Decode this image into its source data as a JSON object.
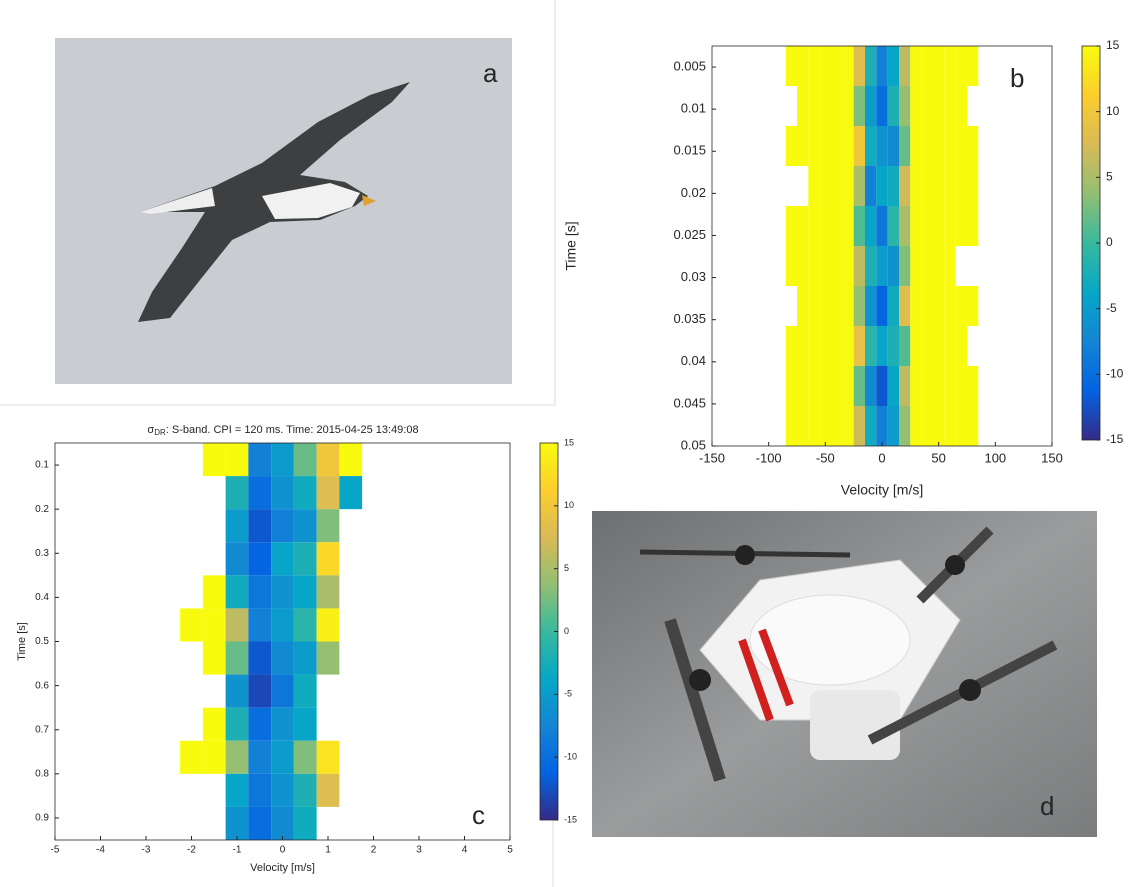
{
  "photos": [
    {
      "label": "a"
    },
    {
      "label": "d"
    }
  ],
  "chart_data": [
    {
      "type": "heatmap",
      "panel": "b",
      "xlabel": "Velocity [m/s]",
      "ylabel": "Time [s]",
      "xlim": [
        -150,
        150
      ],
      "xticks": [
        -150,
        -100,
        -50,
        0,
        50,
        100,
        150
      ],
      "ylim": [
        0.05,
        0.0025
      ],
      "yticks": [
        0.005,
        0.01,
        0.015,
        0.02,
        0.025,
        0.03,
        0.035,
        0.04,
        0.045,
        0.05
      ],
      "x_bins": [
        -85,
        -75,
        -65,
        -55,
        -45,
        -35,
        -25,
        -15,
        -5,
        5,
        15,
        25,
        35,
        45,
        55,
        65,
        75,
        85
      ],
      "y_bins": [
        0.0025,
        0.00725,
        0.012,
        0.01675,
        0.0215,
        0.02625,
        0.031,
        0.03575,
        0.0405,
        0.04525,
        0.05
      ],
      "z": [
        [
          15,
          15,
          15,
          15,
          15,
          15,
          8,
          -2,
          -8,
          -4,
          6,
          15,
          15,
          15,
          15,
          15,
          15
        ],
        [
          null,
          15,
          15,
          15,
          15,
          15,
          3,
          -5,
          -10,
          -2,
          4,
          15,
          15,
          15,
          15,
          15,
          null
        ],
        [
          15,
          15,
          15,
          15,
          15,
          15,
          10,
          -3,
          -6,
          -7,
          2,
          15,
          15,
          15,
          15,
          15,
          15
        ],
        [
          null,
          null,
          15,
          15,
          15,
          15,
          5,
          -8,
          -4,
          -3,
          7,
          15,
          15,
          15,
          15,
          15,
          15
        ],
        [
          15,
          15,
          15,
          15,
          15,
          15,
          1,
          -4,
          -9,
          -1,
          5,
          15,
          15,
          15,
          15,
          15,
          15
        ],
        [
          15,
          15,
          15,
          15,
          15,
          15,
          6,
          -2,
          -5,
          -6,
          3,
          15,
          15,
          15,
          15,
          null,
          null
        ],
        [
          null,
          15,
          15,
          15,
          15,
          15,
          4,
          -6,
          -11,
          -3,
          8,
          15,
          15,
          15,
          15,
          15,
          15
        ],
        [
          15,
          15,
          15,
          15,
          15,
          15,
          9,
          -1,
          -4,
          -2,
          1,
          15,
          15,
          15,
          15,
          15,
          null
        ],
        [
          15,
          15,
          15,
          15,
          15,
          15,
          2,
          -7,
          -12,
          -4,
          6,
          15,
          15,
          15,
          15,
          15,
          15
        ],
        [
          15,
          15,
          15,
          15,
          15,
          15,
          7,
          -3,
          -8,
          -5,
          4,
          15,
          15,
          15,
          15,
          15,
          15
        ]
      ],
      "clim": [
        -15,
        15
      ],
      "cticks": [
        15,
        10,
        5,
        0,
        -5,
        -10,
        -15
      ]
    },
    {
      "type": "heatmap",
      "panel": "c",
      "title_symbol": "σ",
      "title_subscript": "DR",
      "title": ": S-band. CPI = 120 ms. Time: 2015-04-25 13:49:08",
      "xlabel": "Velocity [m/s]",
      "ylabel": "Time [s]",
      "xlim": [
        -5,
        5
      ],
      "xticks": [
        -5,
        -4,
        -3,
        -2,
        -1,
        0,
        1,
        2,
        3,
        4,
        5
      ],
      "ylim": [
        0.95,
        0.05
      ],
      "yticks": [
        0.1,
        0.2,
        0.3,
        0.4,
        0.5,
        0.6,
        0.7,
        0.8,
        0.9
      ],
      "x_bins": [
        -2.25,
        -1.75,
        -1.25,
        -0.75,
        -0.25,
        0.25,
        0.75,
        1.25,
        1.75,
        2.25
      ],
      "y_bins": [
        0.05,
        0.125,
        0.2,
        0.275,
        0.35,
        0.425,
        0.5,
        0.575,
        0.65,
        0.725,
        0.8,
        0.875,
        0.95
      ],
      "z": [
        [
          null,
          15,
          15,
          -8,
          -5,
          2,
          10,
          15,
          null
        ],
        [
          null,
          null,
          -2,
          -10,
          -6,
          -3,
          8,
          -4,
          null
        ],
        [
          null,
          null,
          -5,
          -12,
          -8,
          -6,
          3,
          null,
          null
        ],
        [
          null,
          null,
          -7,
          -11,
          -4,
          -2,
          12,
          null,
          null
        ],
        [
          null,
          15,
          -3,
          -9,
          -6,
          -4,
          5,
          null,
          null
        ],
        [
          15,
          15,
          6,
          -8,
          -5,
          -1,
          14,
          null,
          null
        ],
        [
          null,
          15,
          2,
          -12,
          -7,
          -5,
          4,
          null,
          null
        ],
        [
          null,
          null,
          -6,
          -13,
          -9,
          -3,
          null,
          null,
          null
        ],
        [
          null,
          15,
          -2,
          -10,
          -6,
          -4,
          null,
          null,
          null
        ],
        [
          15,
          15,
          4,
          -8,
          -5,
          3,
          13,
          null,
          null
        ],
        [
          null,
          null,
          -4,
          -9,
          -6,
          -2,
          8,
          null,
          null
        ],
        [
          null,
          null,
          -6,
          -10,
          -7,
          -3,
          null,
          null,
          null
        ]
      ],
      "clim": [
        -15,
        15
      ],
      "cticks": [
        15,
        10,
        5,
        0,
        -5,
        -10,
        -15
      ]
    }
  ]
}
